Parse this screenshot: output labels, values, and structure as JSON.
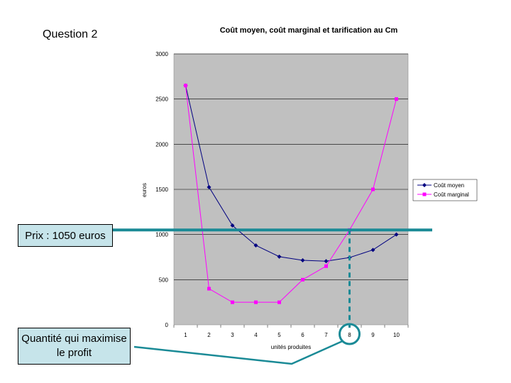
{
  "slide": {
    "title": "Question 2",
    "price_box_text": "Prix : 1050 euros",
    "quantity_box_text": "Quantité qui maximise le profit"
  },
  "chart_data": {
    "type": "line",
    "title": "Coût moyen, coût marginal et tarification au Cm",
    "xlabel": "unités produites",
    "ylabel": "euros",
    "categories": [
      1,
      2,
      3,
      4,
      5,
      6,
      7,
      8,
      9,
      10
    ],
    "ylim": [
      0,
      3000
    ],
    "yticks": [
      0,
      500,
      1000,
      1500,
      2000,
      2500,
      3000
    ],
    "ytick_labels": [
      "0",
      "500",
      "1000",
      "1500",
      "2000",
      "2500",
      "3000"
    ],
    "grid": true,
    "legend_position": "right",
    "series": [
      {
        "name": "Coût moyen",
        "color": "#000080",
        "marker": "diamond",
        "values": [
          2650,
          1525,
          1100,
          880,
          755,
          715,
          705,
          745,
          830,
          1000
        ]
      },
      {
        "name": "Coût marginal",
        "color": "#ff00ff",
        "marker": "square",
        "values": [
          2650,
          400,
          250,
          250,
          250,
          500,
          650,
          1050,
          1500,
          2500
        ]
      }
    ],
    "annotations": {
      "price_line_value": 1050,
      "optimal_quantity": 8,
      "annotation_color": "#1a8a96"
    }
  }
}
